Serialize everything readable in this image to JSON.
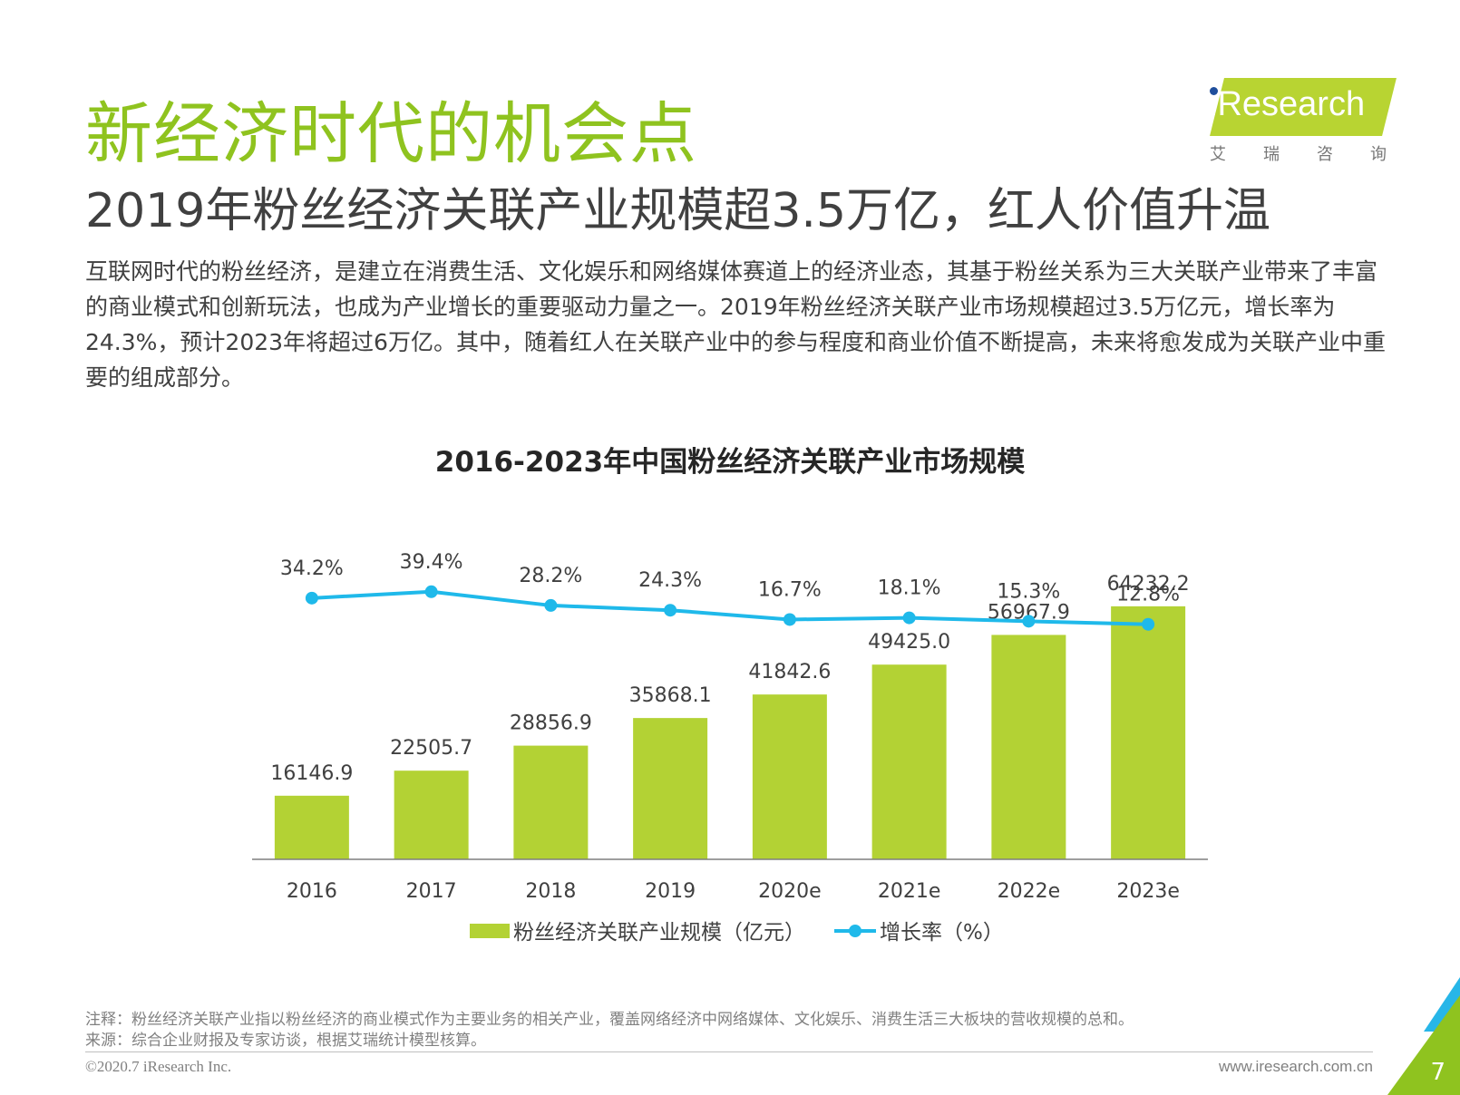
{
  "header": {
    "title": "新经济时代的机会点",
    "subtitle": "2019年粉丝经济关联产业规模超3.5万亿，红人价值升温"
  },
  "logo": {
    "name": "iResearch",
    "cn": "艾瑞咨询"
  },
  "body": {
    "paragraph": "互联网时代的粉丝经济，是建立在消费生活、文化娱乐和网络媒体赛道上的经济业态，其基于粉丝关系为三大关联产业带来了丰富的商业模式和创新玩法，也成为产业增长的重要驱动力量之一。2019年粉丝经济关联产业市场规模超过3.5万亿元，增长率为24.3%，预计2023年将超过6万亿。其中，随着红人在关联产业中的参与程度和商业价值不断提高，未来将愈发成为关联产业中重要的组成部分。"
  },
  "chart_data": {
    "type": "bar",
    "title": "2016-2023年中国粉丝经济关联产业市场规模",
    "categories": [
      "2016",
      "2017",
      "2018",
      "2019",
      "2020e",
      "2021e",
      "2022e",
      "2023e"
    ],
    "series": [
      {
        "name": "粉丝经济关联产业规模（亿元）",
        "type": "bar",
        "values": [
          16146.9,
          22505.7,
          28856.9,
          35868.1,
          41842.6,
          49425.0,
          56967.9,
          64232.2
        ],
        "labels": [
          "16146.9",
          "22505.7",
          "28856.9",
          "35868.1",
          "41842.6",
          "49425.0",
          "56967.9",
          "64232.2"
        ],
        "color": "#b3d234"
      },
      {
        "name": "增长率（%）",
        "type": "line",
        "values": [
          34.2,
          39.4,
          28.2,
          24.3,
          16.7,
          18.1,
          15.3,
          12.8
        ],
        "labels": [
          "34.2%",
          "39.4%",
          "28.2%",
          "24.3%",
          "16.7%",
          "18.1%",
          "15.3%",
          "12.8%"
        ],
        "color": "#1fb9ea"
      }
    ],
    "legend": "bottom",
    "grid": false
  },
  "notes": {
    "note": "注释：粉丝经济关联产业指以粉丝经济的商业模式作为主要业务的相关产业，覆盖网络经济中网络媒体、文化娱乐、消费生活三大板块的营收规模的总和。",
    "source": "来源：综合企业财报及专家访谈，根据艾瑞统计模型核算。"
  },
  "footer": {
    "copyright": "©2020.7 iResearch Inc.",
    "website": "www.iresearch.com.cn",
    "page": "7"
  }
}
